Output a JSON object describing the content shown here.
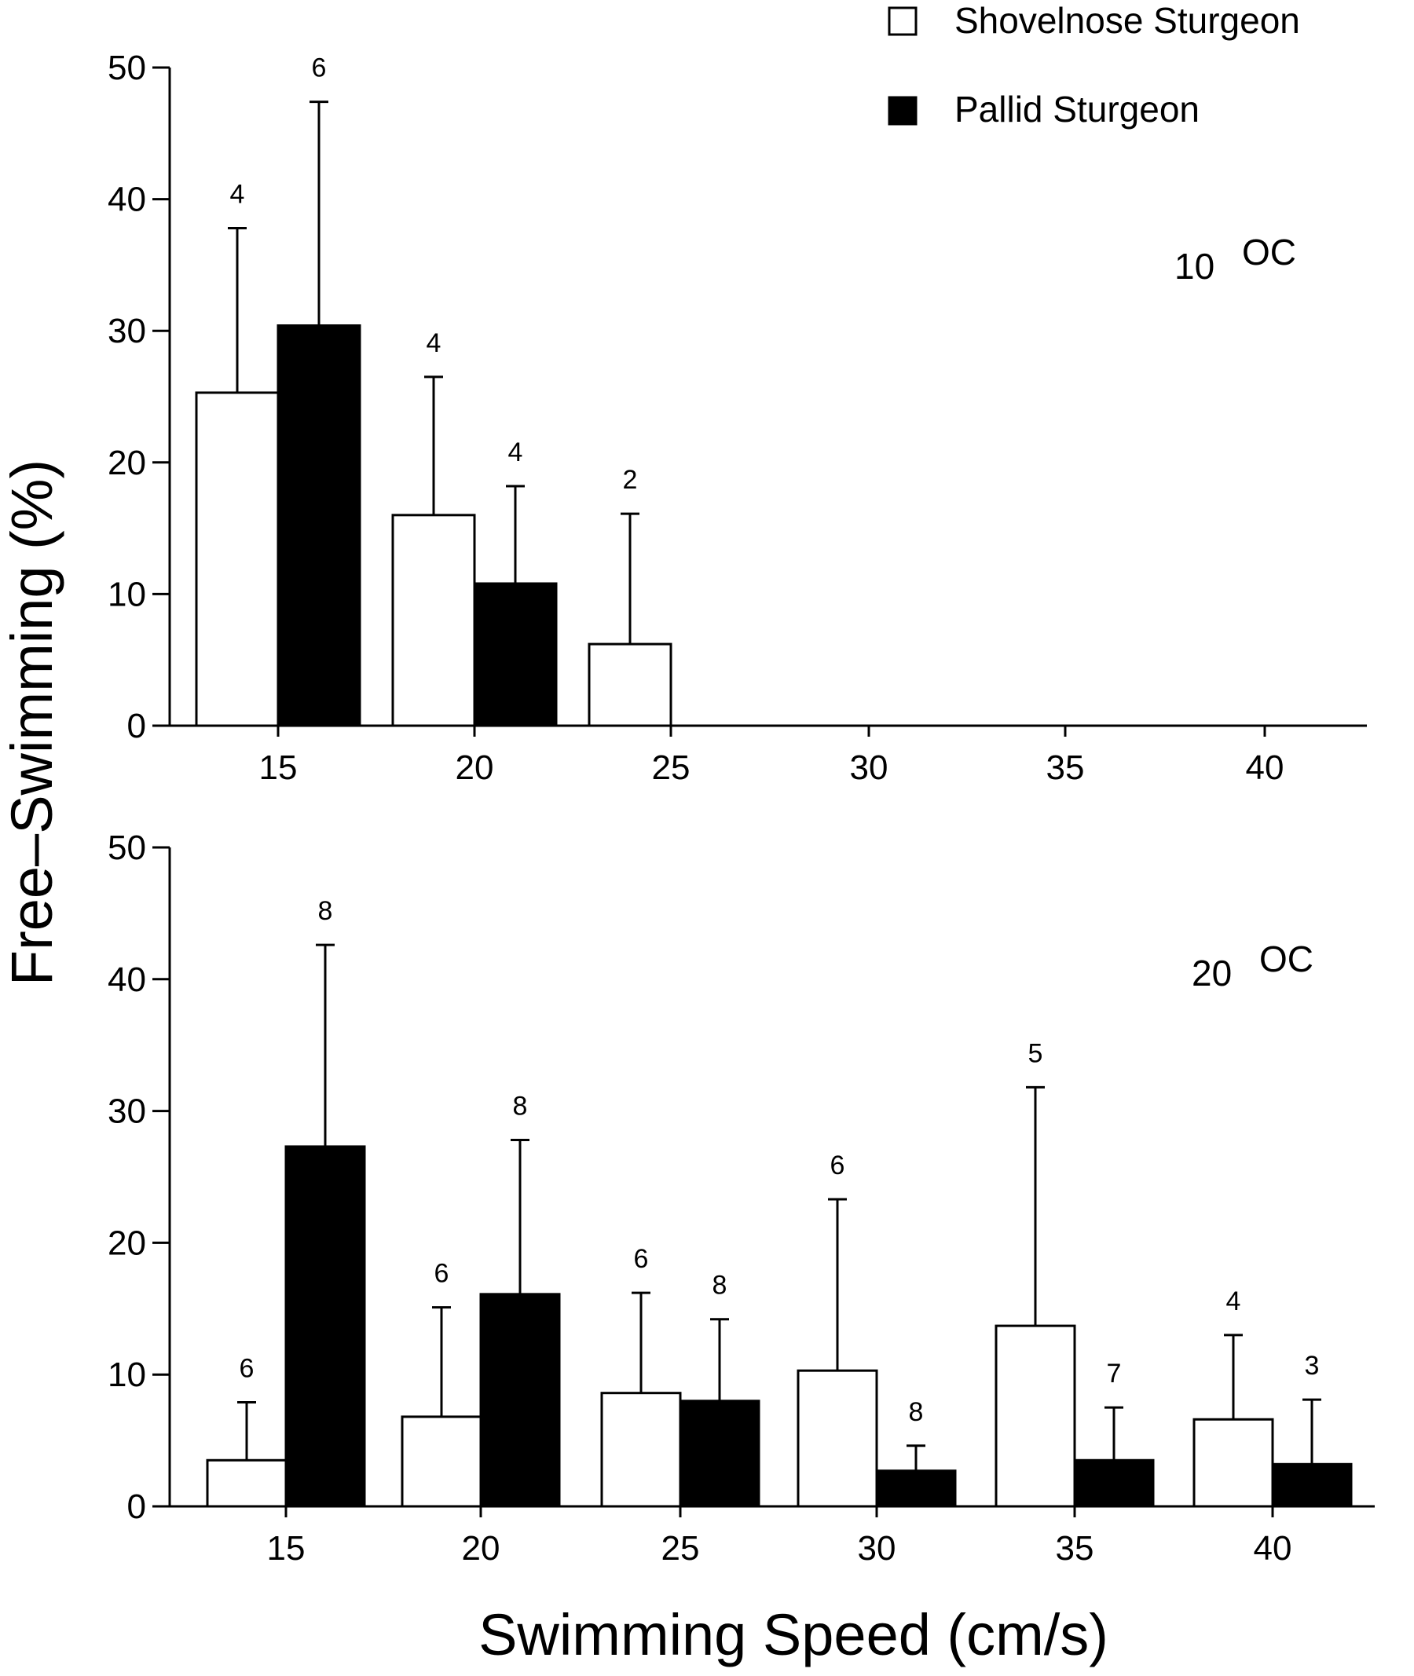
{
  "chart_data": {
    "type": "bar",
    "xlabel": "Swimming Speed (cm/s)",
    "ylabel": "Free–Swimming  (%)",
    "legend": {
      "position": "top-right",
      "entries": [
        {
          "label": "Shovelnose  Sturgeon",
          "fill": "#ffffff"
        },
        {
          "label": "Pallid Sturgeon",
          "fill": "#000000"
        }
      ]
    },
    "categories": [
      "15",
      "20",
      "25",
      "30",
      "35",
      "40"
    ],
    "ylim": [
      0,
      50
    ],
    "yticks": [
      "0",
      "10",
      "20",
      "30",
      "40",
      "50"
    ],
    "grid": false,
    "colors": {
      "shovelnose": "#ffffff",
      "pallid": "#000000",
      "axis": "#000000"
    },
    "panels": [
      {
        "label": "10  °C",
        "label_prefix": "10",
        "label_unit": "OC",
        "series": [
          {
            "key": "shovelnose",
            "values": [
              25.3,
              16.0,
              6.2,
              null,
              null,
              null
            ],
            "error_upper": [
              37.8,
              26.5,
              16.1,
              null,
              null,
              null
            ],
            "n": [
              "4",
              "4",
              "2",
              null,
              null,
              null
            ]
          },
          {
            "key": "pallid",
            "values": [
              30.4,
              10.8,
              null,
              null,
              null,
              null
            ],
            "error_upper": [
              47.4,
              18.2,
              null,
              null,
              null,
              null
            ],
            "n": [
              "6",
              "4",
              null,
              null,
              null,
              null
            ]
          }
        ]
      },
      {
        "label": "20  °C",
        "label_prefix": "20",
        "label_unit": "OC",
        "series": [
          {
            "key": "shovelnose",
            "values": [
              3.5,
              6.8,
              8.6,
              10.3,
              13.7,
              6.6
            ],
            "error_upper": [
              7.9,
              15.1,
              16.2,
              23.3,
              31.8,
              13.0
            ],
            "n": [
              "6",
              "6",
              "6",
              "6",
              "5",
              "4"
            ]
          },
          {
            "key": "pallid",
            "values": [
              27.3,
              16.1,
              8.0,
              2.7,
              3.5,
              3.2
            ],
            "error_upper": [
              42.6,
              27.8,
              14.2,
              4.6,
              7.5,
              8.1
            ],
            "n": [
              "8",
              "8",
              "8",
              "8",
              "7",
              "3"
            ]
          }
        ]
      }
    ]
  }
}
